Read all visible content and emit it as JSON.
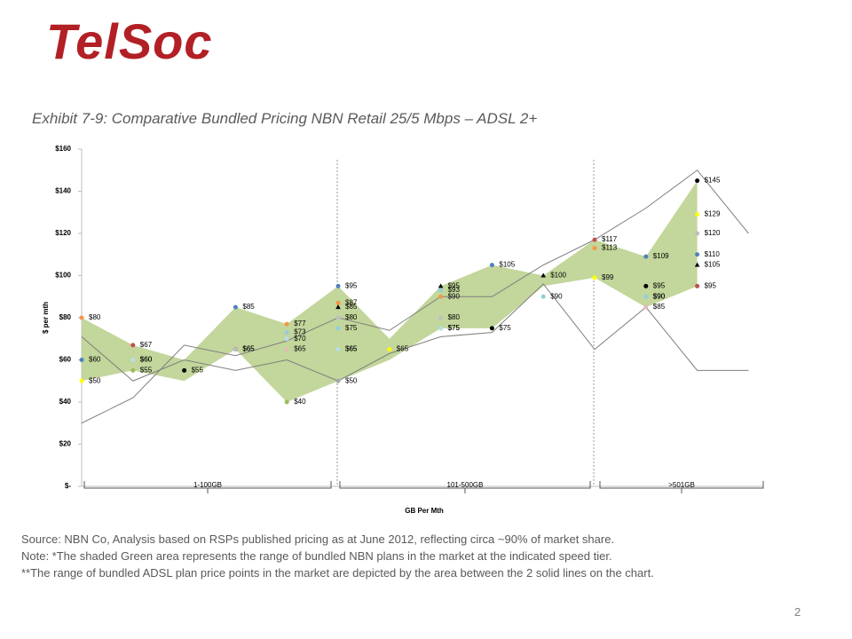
{
  "header": {
    "logo": "TelSoc",
    "exhibit": "Exhibit 7-9: Comparative Bundled Pricing NBN Retail 25/5 Mbps – ADSL 2+"
  },
  "chart_data": {
    "type": "scatter",
    "ylabel": "$ per mth",
    "xlabel": "GB Per Mth",
    "categories": [
      null,
      null,
      null,
      null,
      null,
      null,
      null,
      null,
      null,
      null,
      null,
      null,
      null,
      null
    ],
    "groups": [
      "1-100GB",
      "101-500GB",
      ">501GB"
    ],
    "ylim": [
      0,
      160
    ],
    "yticks": [
      {
        "value": 0,
        "label": "$-"
      },
      {
        "value": 20,
        "label": "$20"
      },
      {
        "value": 40,
        "label": "$40"
      },
      {
        "value": 60,
        "label": "$60"
      },
      {
        "value": 80,
        "label": "$80"
      },
      {
        "value": 100,
        "label": "$100"
      },
      {
        "value": 120,
        "label": "$120"
      },
      {
        "value": 140,
        "label": "$140"
      },
      {
        "value": 160,
        "label": "$160"
      }
    ],
    "range": {
      "color": "#c3d69b",
      "upper": [
        80,
        67,
        60,
        85,
        77,
        95,
        70,
        95,
        105,
        100,
        117,
        109,
        145
      ],
      "lower": [
        50,
        55,
        50,
        65,
        40,
        50,
        60,
        75,
        75,
        95,
        99,
        85,
        95
      ]
    },
    "lines": [
      {
        "color": "#7f7f7f",
        "values": [
          30,
          42,
          67,
          62,
          69,
          80,
          74,
          90,
          90,
          105,
          117,
          132,
          150,
          120
        ]
      },
      {
        "color": "#7f7f7f",
        "values": [
          71,
          50,
          60,
          55,
          60,
          50,
          63,
          71,
          73,
          96,
          65,
          85,
          55,
          55
        ]
      }
    ],
    "series": [
      {
        "color": "#f79646",
        "marker": "circle",
        "values": [
          80,
          null,
          null,
          null,
          77,
          87,
          null,
          90,
          null,
          null,
          113,
          null,
          null,
          null
        ],
        "value_labels": [
          "$80",
          null,
          null,
          null,
          "$77",
          "$87",
          null,
          "$90",
          null,
          null,
          "$113",
          null,
          null,
          null
        ]
      },
      {
        "color": "#c0504d",
        "marker": "circle",
        "values": [
          null,
          67,
          null,
          null,
          null,
          null,
          null,
          null,
          null,
          null,
          117,
          null,
          95,
          null
        ],
        "value_labels": [
          null,
          "$67",
          null,
          null,
          null,
          null,
          null,
          null,
          null,
          null,
          "$117",
          null,
          "$95",
          null
        ]
      },
      {
        "color": "#4f81bd",
        "marker": "circle",
        "values": [
          60,
          null,
          null,
          85,
          null,
          95,
          null,
          null,
          105,
          null,
          null,
          109,
          110,
          null
        ],
        "value_labels": [
          "$60",
          null,
          null,
          "$85",
          null,
          "$95",
          null,
          null,
          "$105",
          null,
          null,
          "$109",
          "$110",
          null
        ]
      },
      {
        "color": "#ffff00",
        "marker": "circle",
        "values": [
          50,
          null,
          null,
          null,
          null,
          null,
          65,
          null,
          null,
          null,
          99,
          null,
          129,
          null
        ],
        "value_labels": [
          "$50",
          null,
          null,
          null,
          null,
          null,
          "$65",
          null,
          null,
          null,
          "$99",
          null,
          "$129",
          null
        ]
      },
      {
        "color": "#000000",
        "marker": "circle",
        "values": [
          null,
          null,
          55,
          65,
          null,
          null,
          null,
          null,
          75,
          null,
          null,
          95,
          145,
          null
        ],
        "value_labels": [
          null,
          null,
          "$55",
          "$65",
          null,
          null,
          null,
          null,
          "$75",
          null,
          null,
          "$95",
          "$145",
          null
        ]
      },
      {
        "color": "#000000",
        "marker": "triangle",
        "values": [
          null,
          null,
          null,
          null,
          null,
          85,
          null,
          95,
          null,
          100,
          null,
          null,
          105,
          null
        ],
        "value_labels": [
          null,
          null,
          null,
          null,
          null,
          "$85",
          null,
          "$95",
          null,
          "$100",
          null,
          null,
          "$105",
          null
        ]
      },
      {
        "color": "#bfbfbf",
        "marker": "circle",
        "values": [
          null,
          60,
          null,
          65,
          null,
          80,
          null,
          80,
          null,
          null,
          null,
          90,
          120,
          null
        ],
        "value_labels": [
          null,
          "$60",
          null,
          "$65",
          null,
          "$80",
          null,
          "$80",
          null,
          null,
          null,
          "$90",
          "$120",
          null
        ]
      },
      {
        "color": "#93cddd",
        "marker": "circle",
        "values": [
          null,
          null,
          null,
          null,
          73,
          75,
          null,
          93,
          null,
          90,
          null,
          90,
          null,
          null
        ],
        "value_labels": [
          null,
          null,
          null,
          null,
          "$73",
          "$75",
          null,
          "$93",
          null,
          "$90",
          null,
          "$90",
          null,
          null
        ]
      },
      {
        "color": "#9bbb59",
        "marker": "circle",
        "values": [
          null,
          55,
          null,
          null,
          40,
          65,
          null,
          75,
          null,
          null,
          null,
          null,
          null,
          null
        ],
        "value_labels": [
          null,
          "$55",
          null,
          null,
          "$40",
          "$65",
          null,
          "$75",
          null,
          null,
          null,
          null,
          null,
          null
        ]
      },
      {
        "color": "#e6b9b8",
        "marker": "circle",
        "values": [
          null,
          null,
          null,
          null,
          65,
          null,
          null,
          null,
          null,
          null,
          null,
          85,
          null,
          null
        ],
        "value_labels": [
          null,
          null,
          null,
          null,
          "$65",
          null,
          null,
          null,
          null,
          null,
          null,
          "$85",
          null,
          null
        ]
      },
      {
        "color": "#b7dee8",
        "marker": "circle",
        "values": [
          null,
          60,
          null,
          null,
          70,
          65,
          null,
          75,
          null,
          null,
          null,
          null,
          null,
          null
        ],
        "value_labels": [
          null,
          "$60",
          null,
          null,
          "$70",
          "$65",
          null,
          "$75",
          null,
          null,
          null,
          null,
          null,
          null
        ]
      },
      {
        "color": "#a6a6a6",
        "marker": "circle",
        "values": [
          null,
          null,
          null,
          null,
          null,
          50,
          null,
          null,
          null,
          null,
          null,
          null,
          null,
          null
        ],
        "value_labels": [
          null,
          null,
          null,
          null,
          null,
          "$50",
          null,
          null,
          null,
          null,
          null,
          null,
          null,
          null
        ]
      }
    ]
  },
  "notes": [
    "Source: NBN Co, Analysis based on RSPs published pricing as at June 2012, reflecting circa ~90% of market share.",
    "Note: *The shaded Green area represents the range of bundled NBN plans in the market at the indicated speed tier.",
    "**The range of bundled ADSL plan price points in the market are depicted by the area between the 2 solid lines on the chart."
  ],
  "page_number": "2"
}
